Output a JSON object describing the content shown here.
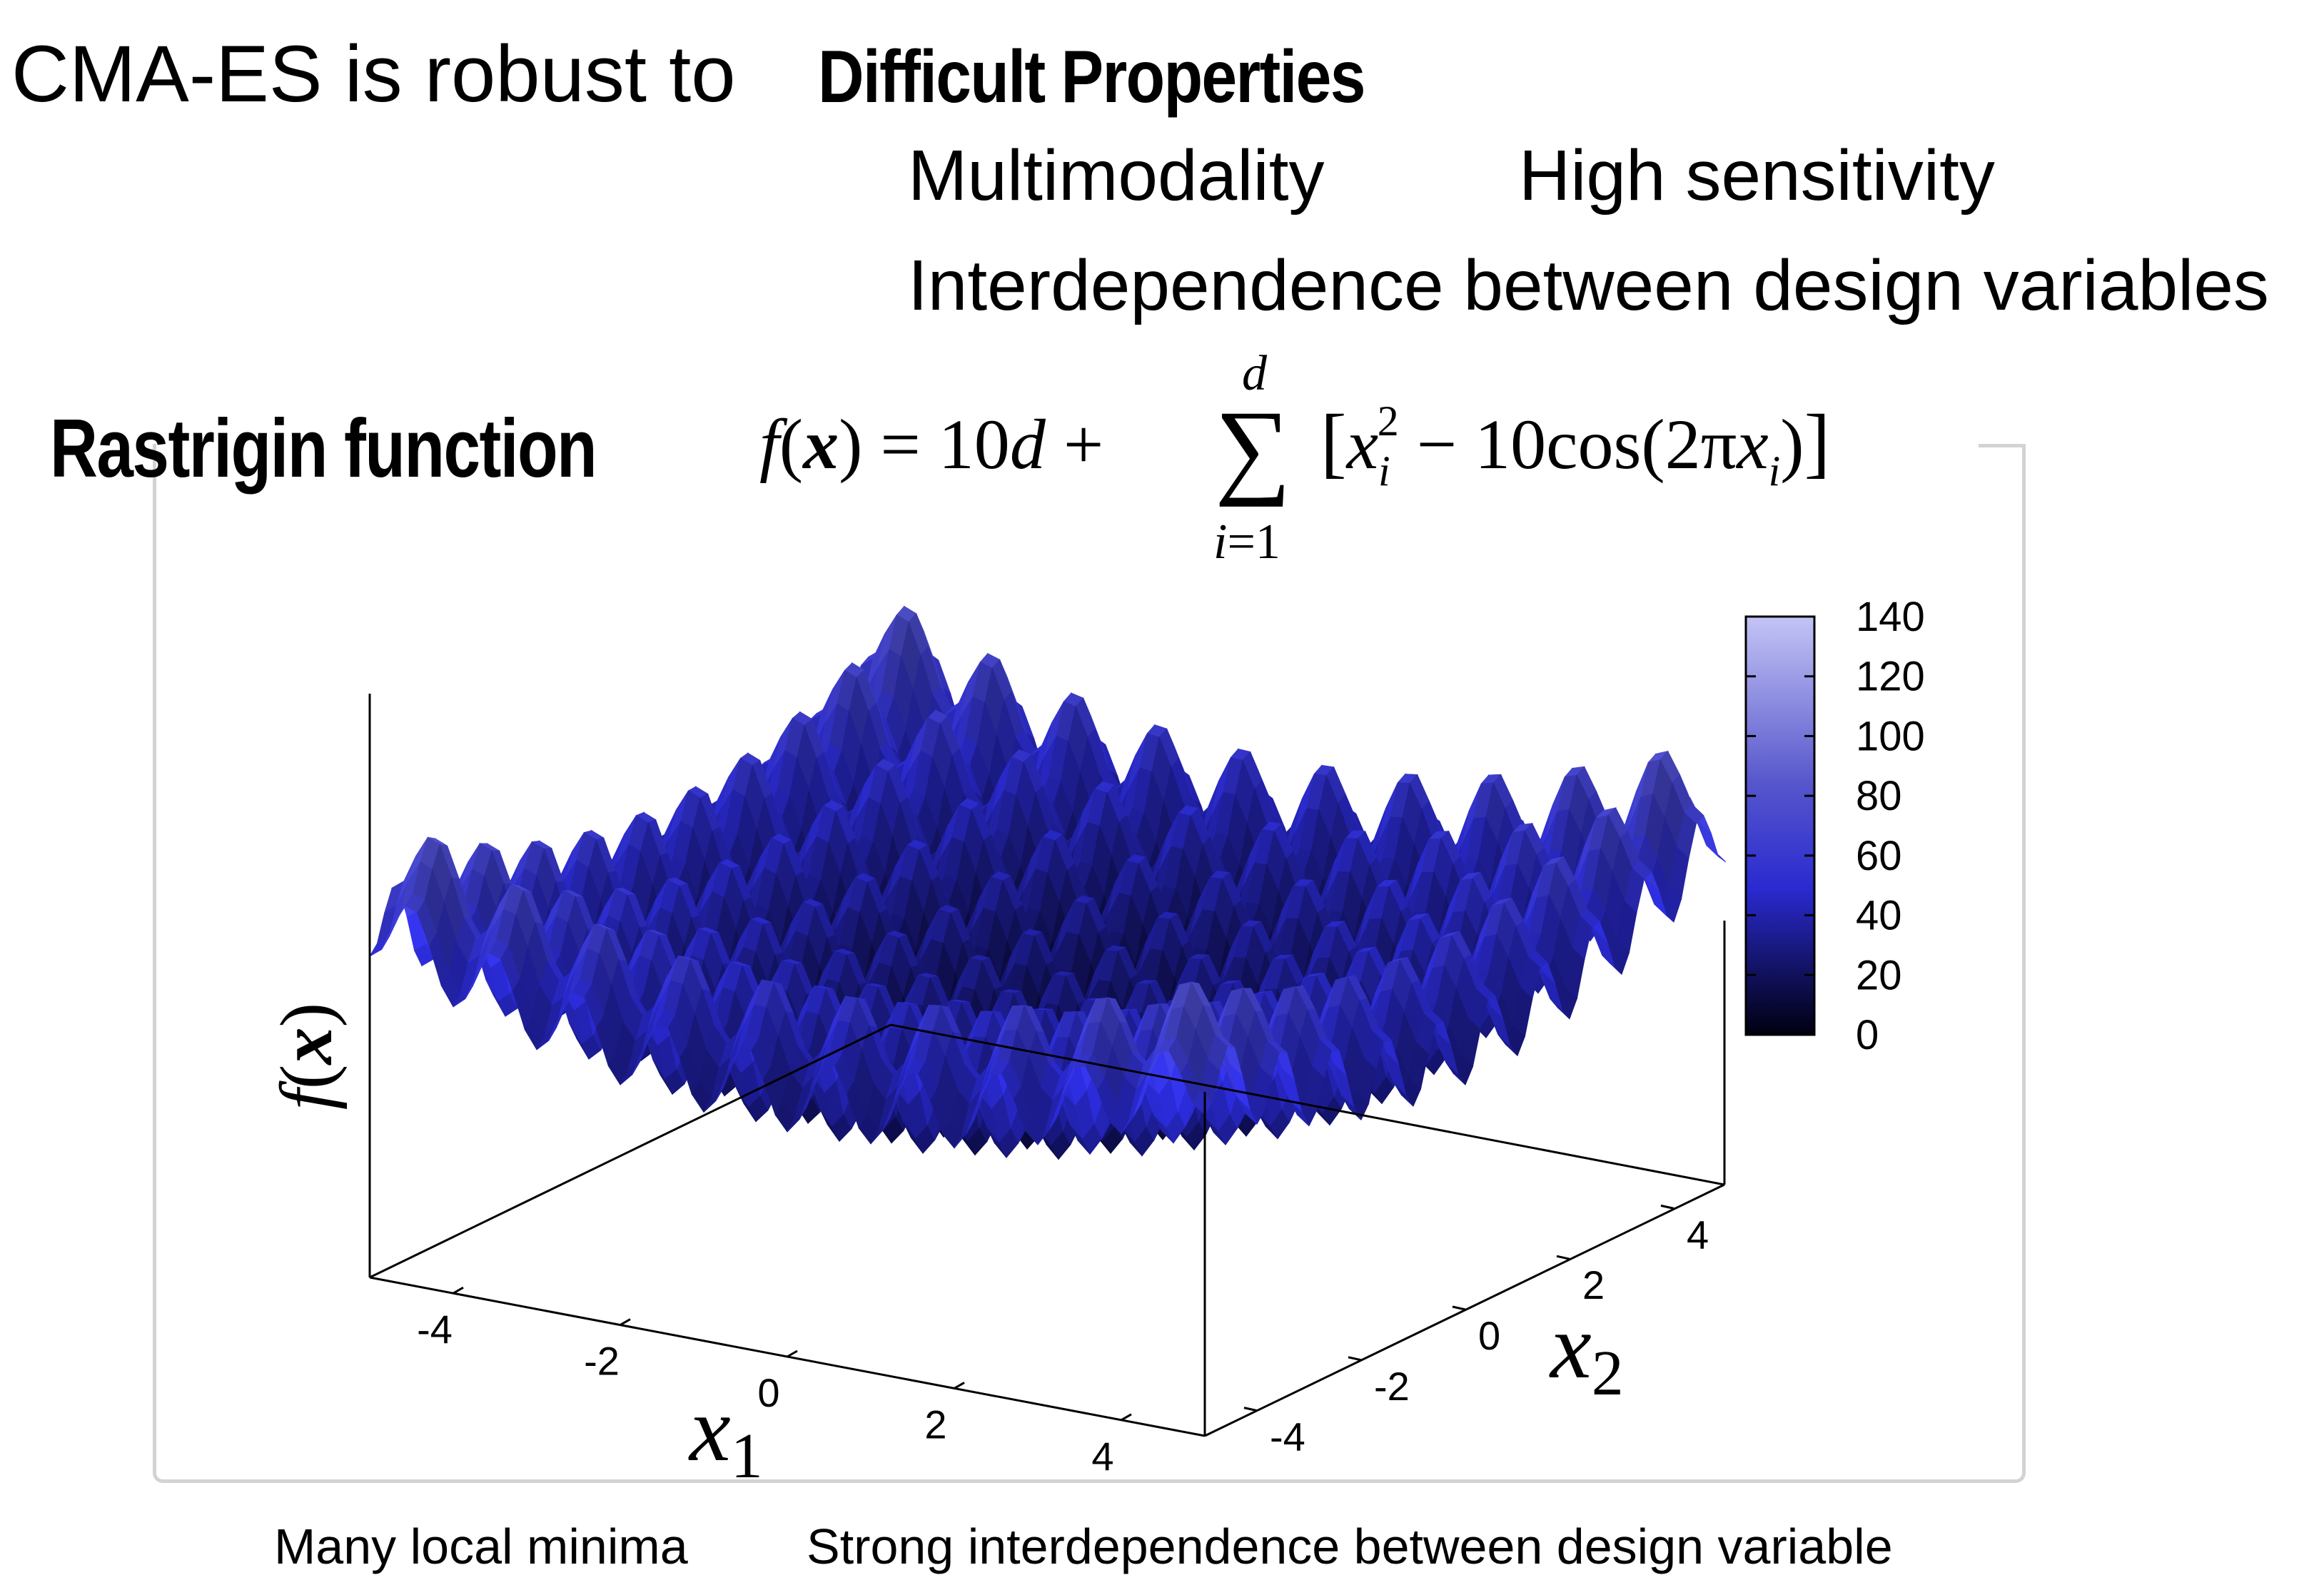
{
  "heading": {
    "lead": "CMA-ES is robust to",
    "emphasis": "Difficult Properties"
  },
  "properties": {
    "multimodality": "Multimodality",
    "sensitivity": "High sensitivity",
    "interdependence": "Interdependence between design variables"
  },
  "function_label": "Rastrigin function",
  "formula": {
    "lhs": "f(x) = 10d +",
    "sum_upper": "d",
    "sum_lower": "i=1",
    "term": "x_i^2 − 10cos(2πx_i)"
  },
  "plot": {
    "z_axis_label": "f(x)",
    "x1_label": "x",
    "x1_sub": "1",
    "x2_label": "x",
    "x2_sub": "2",
    "x1_ticks": [
      "-4",
      "-2",
      "0",
      "2",
      "4"
    ],
    "x2_ticks": [
      "-4",
      "-2",
      "0",
      "2",
      "4"
    ],
    "colorbar_ticks": [
      "140",
      "120",
      "100",
      "80",
      "60",
      "40",
      "20",
      "0"
    ],
    "colors": {
      "low": "#000010",
      "mid": "#2f2fd8",
      "high": "#c4c4f6"
    }
  },
  "captions": {
    "left": "Many local minima",
    "right": "Strong interdependence between design variable"
  }
}
